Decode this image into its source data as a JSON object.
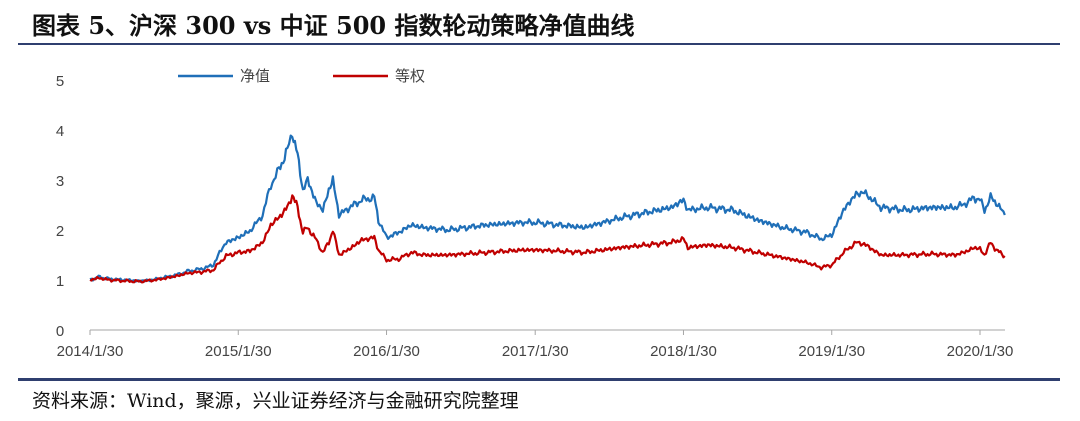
{
  "title": "图表 5、沪深 300 vs  中证 500 指数轮动策略净值曲线",
  "source": "资料来源：Wind，聚源，兴业证券经济与金融研究院整理",
  "chart_data": {
    "type": "line",
    "x_tick_labels": [
      "2014/1/30",
      "2015/1/30",
      "2016/1/30",
      "2017/1/30",
      "2018/1/30",
      "2019/1/30",
      "2020/1/30"
    ],
    "x_range": [
      "2014/1/30",
      "2020/3/31"
    ],
    "y_ticks": [
      0,
      1,
      2,
      3,
      4,
      5
    ],
    "ylim": [
      0,
      5
    ],
    "grid": false,
    "legend_position": "top-left",
    "series": [
      {
        "name": "净值",
        "color": "#1f6fb8",
        "points": [
          [
            "2014/1/30",
            1.0
          ],
          [
            "2014/2/20",
            1.06
          ],
          [
            "2014/3/20",
            1.02
          ],
          [
            "2014/4/30",
            1.0
          ],
          [
            "2014/5/30",
            0.98
          ],
          [
            "2014/6/30",
            1.0
          ],
          [
            "2014/7/31",
            1.05
          ],
          [
            "2014/8/31",
            1.1
          ],
          [
            "2014/9/30",
            1.18
          ],
          [
            "2014/10/31",
            1.22
          ],
          [
            "2014/11/30",
            1.3
          ],
          [
            "2014/12/15",
            1.55
          ],
          [
            "2014/12/31",
            1.75
          ],
          [
            "2015/1/30",
            1.85
          ],
          [
            "2015/2/28",
            1.98
          ],
          [
            "2015/3/31",
            2.3
          ],
          [
            "2015/4/20",
            2.9
          ],
          [
            "2015/5/10",
            3.2
          ],
          [
            "2015/5/31",
            3.6
          ],
          [
            "2015/6/12",
            3.95
          ],
          [
            "2015/6/25",
            3.5
          ],
          [
            "2015/7/8",
            2.8
          ],
          [
            "2015/7/20",
            3.0
          ],
          [
            "2015/8/10",
            2.55
          ],
          [
            "2015/8/26",
            2.4
          ],
          [
            "2015/9/10",
            2.8
          ],
          [
            "2015/9/20",
            3.0
          ],
          [
            "2015/10/5",
            2.3
          ],
          [
            "2015/10/31",
            2.45
          ],
          [
            "2015/11/30",
            2.6
          ],
          [
            "2015/12/31",
            2.65
          ],
          [
            "2016/1/10",
            2.2
          ],
          [
            "2016/1/30",
            1.85
          ],
          [
            "2016/2/29",
            1.95
          ],
          [
            "2016/3/31",
            2.1
          ],
          [
            "2016/4/30",
            2.05
          ],
          [
            "2016/6/30",
            2.0
          ],
          [
            "2016/9/30",
            2.1
          ],
          [
            "2016/12/31",
            2.15
          ],
          [
            "2017/1/30",
            2.15
          ],
          [
            "2017/3/31",
            2.1
          ],
          [
            "2017/5/31",
            2.05
          ],
          [
            "2017/8/31",
            2.25
          ],
          [
            "2017/10/31",
            2.35
          ],
          [
            "2017/12/31",
            2.45
          ],
          [
            "2018/1/30",
            2.6
          ],
          [
            "2018/2/10",
            2.4
          ],
          [
            "2018/3/31",
            2.45
          ],
          [
            "2018/5/31",
            2.4
          ],
          [
            "2018/7/31",
            2.2
          ],
          [
            "2018/9/30",
            2.05
          ],
          [
            "2018/11/30",
            1.95
          ],
          [
            "2019/1/4",
            1.82
          ],
          [
            "2019/1/30",
            1.9
          ],
          [
            "2019/2/28",
            2.4
          ],
          [
            "2019/3/31",
            2.72
          ],
          [
            "2019/4/20",
            2.75
          ],
          [
            "2019/5/31",
            2.45
          ],
          [
            "2019/7/31",
            2.4
          ],
          [
            "2019/9/30",
            2.45
          ],
          [
            "2019/11/30",
            2.45
          ],
          [
            "2019/12/31",
            2.55
          ],
          [
            "2020/1/15",
            2.65
          ],
          [
            "2020/1/30",
            2.6
          ],
          [
            "2020/2/10",
            2.4
          ],
          [
            "2020/2/25",
            2.65
          ],
          [
            "2020/3/10",
            2.55
          ],
          [
            "2020/3/31",
            2.3
          ]
        ]
      },
      {
        "name": "等权",
        "color": "#c00000",
        "points": [
          [
            "2014/1/30",
            1.0
          ],
          [
            "2014/2/20",
            1.04
          ],
          [
            "2014/3/20",
            1.0
          ],
          [
            "2014/4/30",
            0.98
          ],
          [
            "2014/5/30",
            0.97
          ],
          [
            "2014/6/30",
            0.99
          ],
          [
            "2014/7/31",
            1.03
          ],
          [
            "2014/8/31",
            1.08
          ],
          [
            "2014/9/30",
            1.14
          ],
          [
            "2014/10/31",
            1.16
          ],
          [
            "2014/11/30",
            1.2
          ],
          [
            "2014/12/15",
            1.35
          ],
          [
            "2014/12/31",
            1.48
          ],
          [
            "2015/1/30",
            1.55
          ],
          [
            "2015/2/28",
            1.58
          ],
          [
            "2015/3/31",
            1.75
          ],
          [
            "2015/4/20",
            2.1
          ],
          [
            "2015/5/10",
            2.25
          ],
          [
            "2015/5/31",
            2.45
          ],
          [
            "2015/6/12",
            2.7
          ],
          [
            "2015/6/25",
            2.45
          ],
          [
            "2015/7/8",
            1.95
          ],
          [
            "2015/7/20",
            2.05
          ],
          [
            "2015/8/10",
            1.8
          ],
          [
            "2015/8/26",
            1.55
          ],
          [
            "2015/9/10",
            1.75
          ],
          [
            "2015/9/20",
            2.0
          ],
          [
            "2015/10/5",
            1.5
          ],
          [
            "2015/10/31",
            1.62
          ],
          [
            "2015/11/30",
            1.8
          ],
          [
            "2015/12/31",
            1.85
          ],
          [
            "2016/1/10",
            1.6
          ],
          [
            "2016/1/30",
            1.4
          ],
          [
            "2016/2/29",
            1.42
          ],
          [
            "2016/3/31",
            1.55
          ],
          [
            "2016/4/30",
            1.5
          ],
          [
            "2016/6/30",
            1.5
          ],
          [
            "2016/9/30",
            1.55
          ],
          [
            "2016/12/31",
            1.6
          ],
          [
            "2017/1/30",
            1.6
          ],
          [
            "2017/3/31",
            1.58
          ],
          [
            "2017/5/31",
            1.55
          ],
          [
            "2017/8/31",
            1.65
          ],
          [
            "2017/10/31",
            1.7
          ],
          [
            "2017/12/31",
            1.75
          ],
          [
            "2018/1/30",
            1.82
          ],
          [
            "2018/2/10",
            1.65
          ],
          [
            "2018/3/31",
            1.7
          ],
          [
            "2018/5/31",
            1.65
          ],
          [
            "2018/7/31",
            1.55
          ],
          [
            "2018/9/30",
            1.45
          ],
          [
            "2018/11/30",
            1.35
          ],
          [
            "2019/1/4",
            1.25
          ],
          [
            "2019/1/30",
            1.3
          ],
          [
            "2019/2/28",
            1.55
          ],
          [
            "2019/3/31",
            1.75
          ],
          [
            "2019/4/20",
            1.72
          ],
          [
            "2019/5/31",
            1.5
          ],
          [
            "2019/7/31",
            1.5
          ],
          [
            "2019/9/30",
            1.52
          ],
          [
            "2019/11/30",
            1.5
          ],
          [
            "2019/12/31",
            1.58
          ],
          [
            "2020/1/15",
            1.65
          ],
          [
            "2020/1/30",
            1.62
          ],
          [
            "2020/2/10",
            1.5
          ],
          [
            "2020/2/25",
            1.75
          ],
          [
            "2020/3/10",
            1.6
          ],
          [
            "2020/3/31",
            1.48
          ]
        ]
      }
    ]
  }
}
